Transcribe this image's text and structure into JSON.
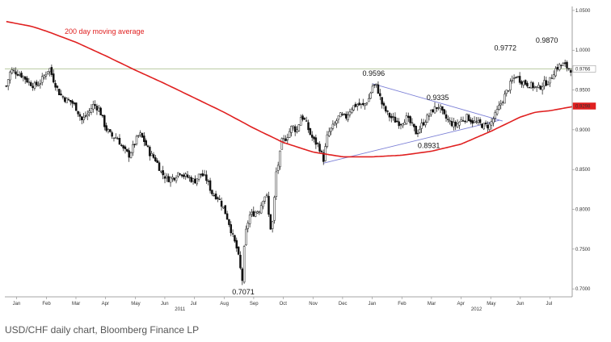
{
  "chart_data": {
    "type": "candlestick",
    "caption": "USD/CHF daily chart, Bloomberg Finance LP",
    "y_axis": {
      "ticks": [
        {
          "value": 0.7,
          "label": "0.7000"
        },
        {
          "value": 0.75,
          "label": "0.7500"
        },
        {
          "value": 0.8,
          "label": "0.8000"
        },
        {
          "value": 0.85,
          "label": "0.8500"
        },
        {
          "value": 0.9,
          "label": "0.9000"
        },
        {
          "value": 0.95,
          "label": "0.9500"
        },
        {
          "value": 1.0,
          "label": "1.0000"
        },
        {
          "value": 1.05,
          "label": "1.0500"
        }
      ],
      "ylim": [
        0.69,
        1.055
      ]
    },
    "x_axis": {
      "months": [
        "Jan",
        "Feb",
        "Mar",
        "Apr",
        "May",
        "Jun",
        "Jul",
        "Aug",
        "Sep",
        "Oct",
        "Nov",
        "Dec",
        "Jan",
        "Feb",
        "Mar",
        "Apr",
        "May",
        "Jun",
        "Jul"
      ],
      "years": [
        {
          "label": "2011",
          "month_index": 5.5
        },
        {
          "label": "2012",
          "month_index": 15.5
        }
      ],
      "xlim": [
        -0.4,
        18.75
      ]
    },
    "price_path": [
      [
        -0.35,
        0.955
      ],
      [
        -0.2,
        0.975
      ],
      [
        0.0,
        0.972
      ],
      [
        0.2,
        0.968
      ],
      [
        0.4,
        0.96
      ],
      [
        0.6,
        0.955
      ],
      [
        0.8,
        0.96
      ],
      [
        1.0,
        0.972
      ],
      [
        1.1,
        0.978
      ],
      [
        1.25,
        0.962
      ],
      [
        1.45,
        0.945
      ],
      [
        1.65,
        0.938
      ],
      [
        1.85,
        0.935
      ],
      [
        2.0,
        0.928
      ],
      [
        2.2,
        0.912
      ],
      [
        2.4,
        0.92
      ],
      [
        2.6,
        0.932
      ],
      [
        2.8,
        0.925
      ],
      [
        3.0,
        0.902
      ],
      [
        3.2,
        0.892
      ],
      [
        3.4,
        0.89
      ],
      [
        3.6,
        0.875
      ],
      [
        3.8,
        0.868
      ],
      [
        4.0,
        0.885
      ],
      [
        4.15,
        0.895
      ],
      [
        4.3,
        0.886
      ],
      [
        4.5,
        0.87
      ],
      [
        4.7,
        0.862
      ],
      [
        4.9,
        0.845
      ],
      [
        5.1,
        0.838
      ],
      [
        5.3,
        0.84
      ],
      [
        5.5,
        0.848
      ],
      [
        5.65,
        0.842
      ],
      [
        5.8,
        0.84
      ],
      [
        6.0,
        0.835
      ],
      [
        6.2,
        0.845
      ],
      [
        6.4,
        0.838
      ],
      [
        6.6,
        0.82
      ],
      [
        6.8,
        0.815
      ],
      [
        7.0,
        0.8
      ],
      [
        7.15,
        0.785
      ],
      [
        7.3,
        0.765
      ],
      [
        7.45,
        0.748
      ],
      [
        7.55,
        0.725
      ],
      [
        7.62,
        0.71
      ],
      [
        7.7,
        0.765
      ],
      [
        7.85,
        0.792
      ],
      [
        8.0,
        0.795
      ],
      [
        8.2,
        0.8
      ],
      [
        8.35,
        0.818
      ],
      [
        8.45,
        0.815
      ],
      [
        8.55,
        0.775
      ],
      [
        8.65,
        0.785
      ],
      [
        8.75,
        0.845
      ],
      [
        8.85,
        0.86
      ],
      [
        8.95,
        0.885
      ],
      [
        9.1,
        0.89
      ],
      [
        9.3,
        0.905
      ],
      [
        9.45,
        0.898
      ],
      [
        9.6,
        0.918
      ],
      [
        9.75,
        0.91
      ],
      [
        9.9,
        0.895
      ],
      [
        10.05,
        0.885
      ],
      [
        10.2,
        0.88
      ],
      [
        10.35,
        0.862
      ],
      [
        10.5,
        0.895
      ],
      [
        10.7,
        0.905
      ],
      [
        10.9,
        0.918
      ],
      [
        11.1,
        0.915
      ],
      [
        11.3,
        0.928
      ],
      [
        11.5,
        0.932
      ],
      [
        11.7,
        0.93
      ],
      [
        11.9,
        0.94
      ],
      [
        12.0,
        0.955
      ],
      [
        12.15,
        0.955
      ],
      [
        12.35,
        0.93
      ],
      [
        12.55,
        0.918
      ],
      [
        12.75,
        0.912
      ],
      [
        12.95,
        0.908
      ],
      [
        13.15,
        0.915
      ],
      [
        13.35,
        0.905
      ],
      [
        13.5,
        0.895
      ],
      [
        13.65,
        0.905
      ],
      [
        13.85,
        0.915
      ],
      [
        14.05,
        0.925
      ],
      [
        14.25,
        0.93
      ],
      [
        14.4,
        0.918
      ],
      [
        14.6,
        0.91
      ],
      [
        14.8,
        0.905
      ],
      [
        15.0,
        0.912
      ],
      [
        15.2,
        0.916
      ],
      [
        15.4,
        0.91
      ],
      [
        15.6,
        0.908
      ],
      [
        15.75,
        0.905
      ],
      [
        15.95,
        0.905
      ],
      [
        16.15,
        0.918
      ],
      [
        16.3,
        0.93
      ],
      [
        16.5,
        0.945
      ],
      [
        16.7,
        0.96
      ],
      [
        16.85,
        0.968
      ],
      [
        17.0,
        0.962
      ],
      [
        17.2,
        0.958
      ],
      [
        17.4,
        0.955
      ],
      [
        17.6,
        0.952
      ],
      [
        17.8,
        0.958
      ],
      [
        18.0,
        0.962
      ],
      [
        18.15,
        0.975
      ],
      [
        18.3,
        0.98
      ],
      [
        18.45,
        0.982
      ],
      [
        18.6,
        0.978
      ],
      [
        18.7,
        0.976
      ]
    ],
    "moving_average": {
      "name": "200 day moving average",
      "color": "#e02020",
      "points": [
        [
          -0.35,
          1.036
        ],
        [
          0.5,
          1.03
        ],
        [
          1.0,
          1.024
        ],
        [
          2.0,
          1.01
        ],
        [
          3.0,
          0.993
        ],
        [
          4.0,
          0.975
        ],
        [
          5.0,
          0.958
        ],
        [
          6.0,
          0.94
        ],
        [
          7.0,
          0.922
        ],
        [
          8.0,
          0.902
        ],
        [
          9.0,
          0.884
        ],
        [
          10.0,
          0.872
        ],
        [
          11.0,
          0.866
        ],
        [
          12.0,
          0.866
        ],
        [
          13.0,
          0.868
        ],
        [
          14.0,
          0.873
        ],
        [
          15.0,
          0.882
        ],
        [
          16.0,
          0.898
        ],
        [
          17.0,
          0.916
        ],
        [
          17.5,
          0.922
        ],
        [
          18.0,
          0.924
        ],
        [
          18.75,
          0.929
        ]
      ]
    },
    "horizontal_line": {
      "value": 0.9766,
      "color": "#b8c9a0"
    },
    "trendlines": [
      {
        "from": [
          12.0,
          0.958
        ],
        "to": [
          16.4,
          0.911
        ],
        "color": "#7b7fd6"
      },
      {
        "from": [
          10.35,
          0.858
        ],
        "to": [
          16.3,
          0.912
        ],
        "color": "#7b7fd6"
      }
    ],
    "annotations": [
      {
        "text": "0.9596",
        "x": 12.0,
        "y": 0.9596
      },
      {
        "text": "0.9335",
        "x": 14.0,
        "y": 0.9335
      },
      {
        "text": "0.8931",
        "x": 13.7,
        "y": 0.8931
      },
      {
        "text": "0.7071",
        "x": 7.6,
        "y": 0.7071
      },
      {
        "text": "0.9772",
        "x": 16.5,
        "y": 0.9772
      },
      {
        "text": "0.9870",
        "x": 17.9,
        "y": 0.987
      }
    ],
    "last_price_labels": [
      {
        "text": "0.9766",
        "value": 0.9766,
        "color": "#ffffff",
        "text_color": "#333333"
      },
      {
        "text": "0.9298",
        "value": 0.9298,
        "color": "#e02020",
        "text_color": "#ffffff"
      }
    ],
    "ma_label": "200 day moving average"
  }
}
